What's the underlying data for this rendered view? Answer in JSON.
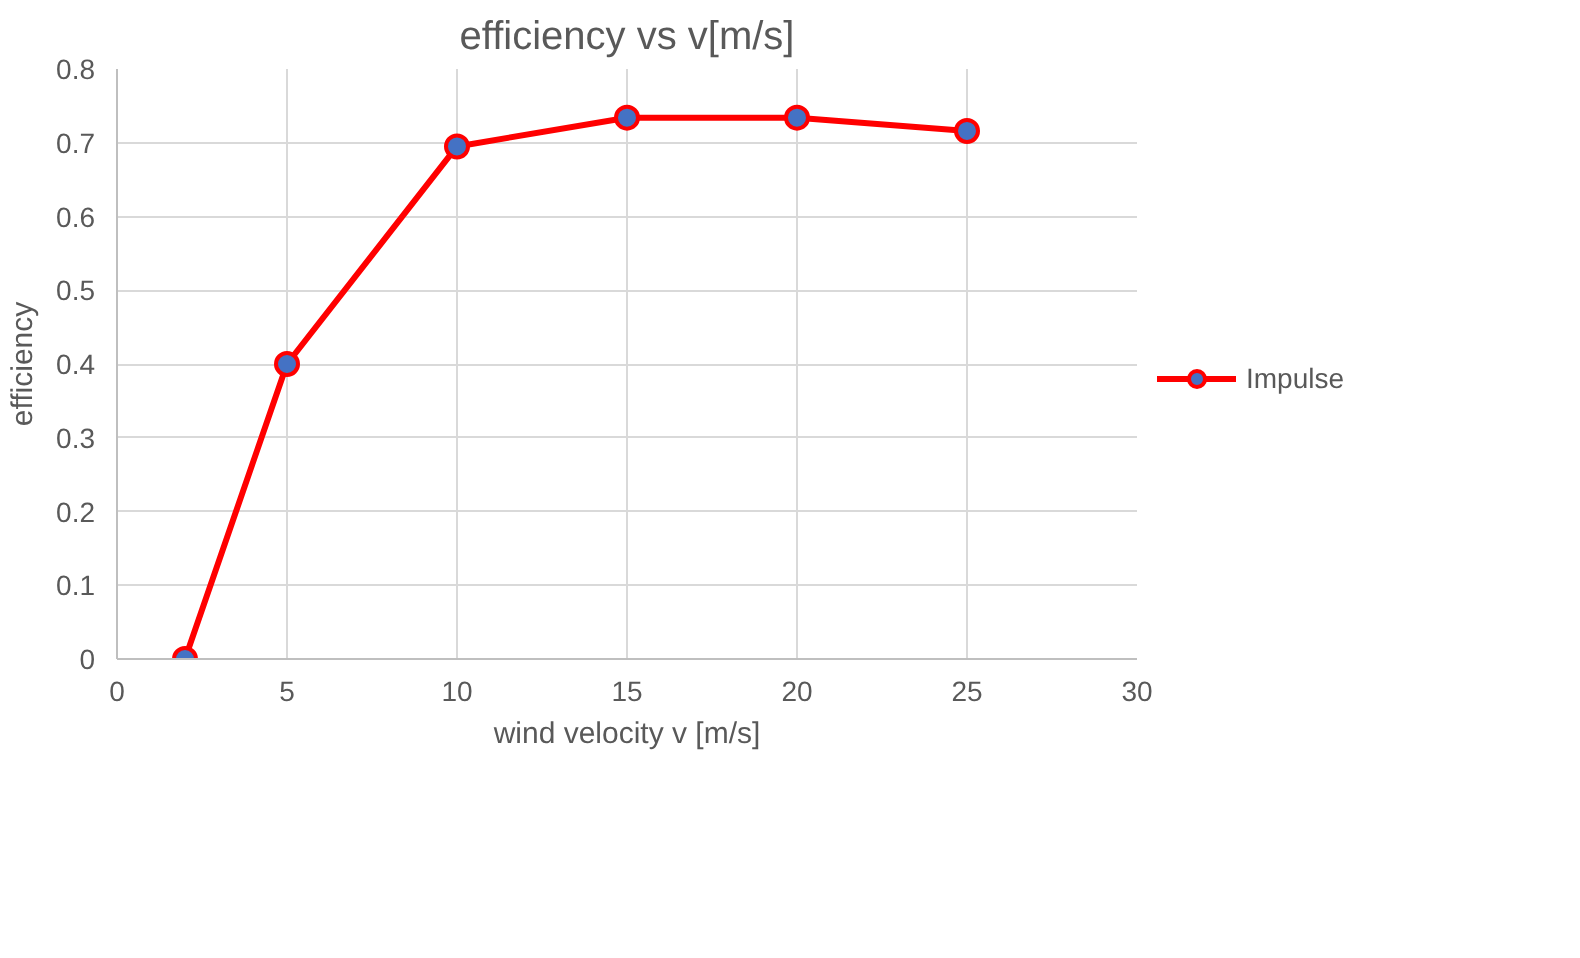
{
  "chart_data": {
    "type": "line",
    "title": "efficiency vs v[m/s]",
    "xlabel": "wind velocity v [m/s]",
    "ylabel": "efficiency",
    "x": [
      2,
      5,
      10,
      15,
      20,
      25
    ],
    "series": [
      {
        "name": "Impulse",
        "color": "#ff0000",
        "values": [
          0,
          0.4,
          0.695,
          0.734,
          0.734,
          0.716
        ]
      }
    ],
    "xlim": [
      0,
      30
    ],
    "xticks": [
      0,
      5,
      10,
      15,
      20,
      25,
      30
    ],
    "ylim": [
      0,
      0.8
    ],
    "yticks": [
      0,
      0.1,
      0.2,
      0.3,
      0.4,
      0.5,
      0.6,
      0.7,
      0.8
    ],
    "grid": true,
    "legend": "right",
    "marker": "circle",
    "line_style": "solid"
  }
}
